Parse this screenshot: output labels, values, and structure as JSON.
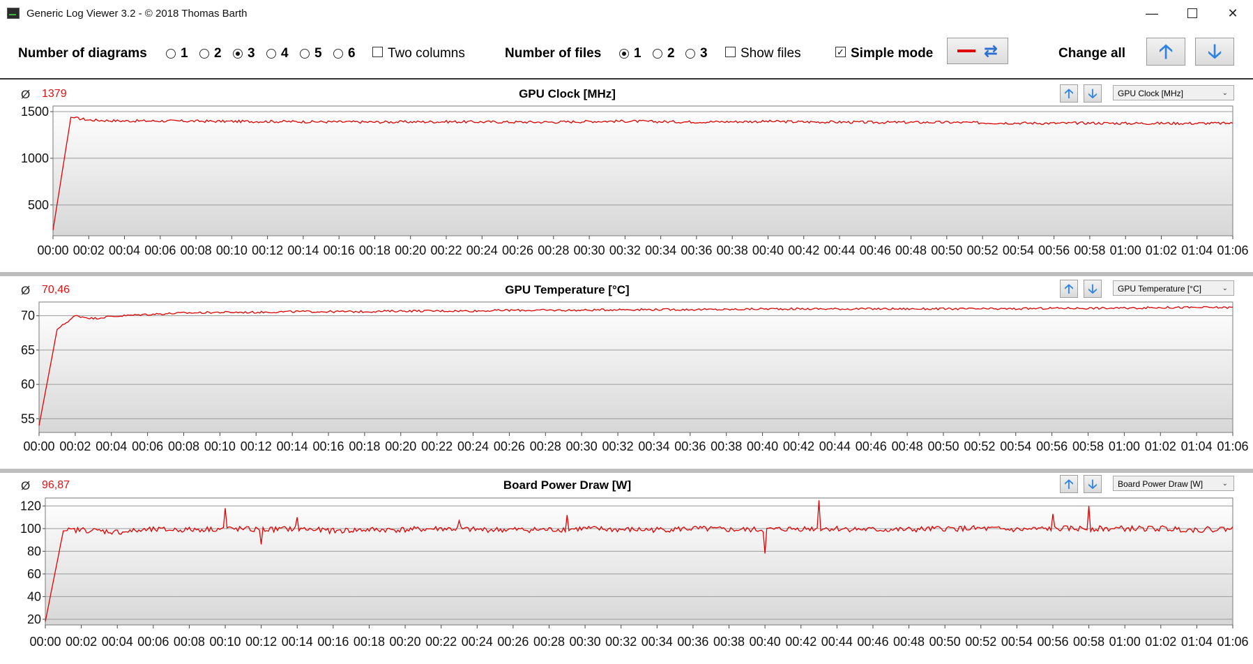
{
  "window": {
    "title": "Generic Log Viewer 3.2 - © 2018 Thomas Barth"
  },
  "toolbar": {
    "num_diagrams_label": "Number of diagrams",
    "diagram_options": [
      "1",
      "2",
      "3",
      "4",
      "5",
      "6"
    ],
    "diagrams_selected": "3",
    "two_columns_label": "Two columns",
    "two_columns_checked": false,
    "num_files_label": "Number of files",
    "file_options": [
      "1",
      "2",
      "3"
    ],
    "files_selected": "1",
    "show_files_label": "Show files",
    "show_files_checked": false,
    "simple_mode_label": "Simple mode",
    "simple_mode_checked": true,
    "change_all_label": "Change all",
    "line_color": "#e00000"
  },
  "panels": [
    {
      "avg_symbol": "Ø",
      "avg_value": "1379",
      "title": "GPU Clock [MHz]",
      "sensor_select": "GPU Clock [MHz]"
    },
    {
      "avg_symbol": "Ø",
      "avg_value": "70,46",
      "title": "GPU Temperature [°C]",
      "sensor_select": "GPU Temperature [°C]"
    },
    {
      "avg_symbol": "Ø",
      "avg_value": "96,87",
      "title": "Board Power Draw [W]",
      "sensor_select": "Board Power Draw [W]"
    }
  ],
  "chart_data": [
    {
      "type": "line",
      "title": "GPU Clock [MHz]",
      "ylim": [
        170,
        1560
      ],
      "y_ticks": [
        500,
        1000,
        1500
      ],
      "xlim": [
        "00:00",
        "01:06"
      ],
      "x_ticks": [
        "00:00",
        "00:02",
        "00:04",
        "00:06",
        "00:08",
        "00:10",
        "00:12",
        "00:14",
        "00:16",
        "00:18",
        "00:20",
        "00:22",
        "00:24",
        "00:26",
        "00:28",
        "00:30",
        "00:32",
        "00:34",
        "00:36",
        "00:38",
        "00:40",
        "00:42",
        "00:44",
        "00:46",
        "00:48",
        "00:50",
        "00:52",
        "00:54",
        "00:56",
        "00:58",
        "01:00",
        "01:02",
        "01:04",
        "01:06"
      ],
      "series": [
        {
          "x": [
            "00:00",
            "00:01",
            "00:02",
            "00:03",
            "00:04",
            "00:06",
            "00:08",
            "00:10",
            "00:12",
            "00:14",
            "00:16",
            "00:18",
            "00:20",
            "00:22",
            "00:24",
            "00:26",
            "00:28",
            "00:30",
            "00:32",
            "00:34",
            "00:36",
            "00:38",
            "00:40",
            "00:42",
            "00:44",
            "00:46",
            "00:48",
            "00:50",
            "00:52",
            "00:54",
            "00:56",
            "00:58",
            "01:00",
            "01:02",
            "01:04",
            "01:06"
          ],
          "values": [
            230,
            1440,
            1410,
            1405,
            1400,
            1400,
            1398,
            1395,
            1395,
            1392,
            1390,
            1388,
            1390,
            1392,
            1390,
            1388,
            1388,
            1395,
            1398,
            1392,
            1390,
            1392,
            1395,
            1390,
            1388,
            1385,
            1385,
            1385,
            1380,
            1378,
            1375,
            1378,
            1375,
            1375,
            1375,
            1375
          ]
        }
      ],
      "grid": true
    },
    {
      "type": "line",
      "title": "GPU Temperature [°C]",
      "ylim": [
        53,
        72
      ],
      "y_ticks": [
        55,
        60,
        65,
        70
      ],
      "xlim": [
        "00:00",
        "01:06"
      ],
      "x_ticks": [
        "00:00",
        "00:02",
        "00:04",
        "00:06",
        "00:08",
        "00:10",
        "00:12",
        "00:14",
        "00:16",
        "00:18",
        "00:20",
        "00:22",
        "00:24",
        "00:26",
        "00:28",
        "00:30",
        "00:32",
        "00:34",
        "00:36",
        "00:38",
        "00:40",
        "00:42",
        "00:44",
        "00:46",
        "00:48",
        "00:50",
        "00:52",
        "00:54",
        "00:56",
        "00:58",
        "01:00",
        "01:02",
        "01:04",
        "01:06"
      ],
      "series": [
        {
          "x": [
            "00:00",
            "00:01",
            "00:02",
            "00:03",
            "00:04",
            "00:06",
            "00:08",
            "00:10",
            "00:12",
            "00:14",
            "00:16",
            "00:18",
            "00:20",
            "00:22",
            "00:24",
            "00:26",
            "00:28",
            "00:30",
            "00:32",
            "00:34",
            "00:36",
            "00:38",
            "00:40",
            "00:42",
            "00:44",
            "00:46",
            "00:48",
            "00:50",
            "00:52",
            "00:54",
            "00:56",
            "00:58",
            "01:00",
            "01:02",
            "01:04",
            "01:06"
          ],
          "values": [
            54,
            68,
            70,
            69.6,
            69.9,
            70.2,
            70.4,
            70.5,
            70.5,
            70.6,
            70.6,
            70.6,
            70.7,
            70.7,
            70.7,
            70.8,
            70.8,
            70.8,
            70.9,
            70.9,
            70.9,
            70.9,
            71,
            71,
            71,
            71,
            71,
            71,
            71,
            71,
            71.1,
            71.1,
            71.1,
            71.2,
            71.2,
            71.2
          ]
        }
      ],
      "grid": true
    },
    {
      "type": "line",
      "title": "Board Power Draw [W]",
      "ylim": [
        15,
        127
      ],
      "y_ticks": [
        20,
        40,
        60,
        80,
        100,
        120
      ],
      "xlim": [
        "00:00",
        "01:06"
      ],
      "x_ticks": [
        "00:00",
        "00:02",
        "00:04",
        "00:06",
        "00:08",
        "00:10",
        "00:12",
        "00:14",
        "00:16",
        "00:18",
        "00:20",
        "00:22",
        "00:24",
        "00:26",
        "00:28",
        "00:30",
        "00:32",
        "00:34",
        "00:36",
        "00:38",
        "00:40",
        "00:42",
        "00:44",
        "00:46",
        "00:48",
        "00:50",
        "00:52",
        "00:54",
        "00:56",
        "00:58",
        "01:00",
        "01:02",
        "01:04",
        "01:06"
      ],
      "series": [
        {
          "x": [
            "00:00",
            "00:01",
            "00:02",
            "00:04",
            "00:06",
            "00:08",
            "00:10",
            "00:12",
            "00:14",
            "00:16",
            "00:18",
            "00:20",
            "00:22",
            "00:24",
            "00:26",
            "00:28",
            "00:30",
            "00:32",
            "00:34",
            "00:36",
            "00:38",
            "00:40",
            "00:42",
            "00:44",
            "00:46",
            "00:48",
            "00:50",
            "00:52",
            "00:54",
            "00:56",
            "00:58",
            "01:00",
            "01:02",
            "01:04",
            "01:06"
          ],
          "values": [
            18,
            98,
            99,
            97,
            99,
            99,
            100,
            99,
            100,
            98,
            99,
            99,
            100,
            99,
            99,
            99,
            100,
            99,
            99,
            100,
            99,
            99,
            100,
            100,
            99,
            99,
            100,
            100,
            99,
            100,
            100,
            100,
            100,
            99,
            100
          ]
        },
        {
          "x": [
            "00:10",
            "00:12",
            "00:14",
            "00:23",
            "00:29",
            "00:40",
            "00:43",
            "00:56",
            "00:58"
          ],
          "values": [
            118,
            86,
            110,
            107,
            112,
            78,
            125,
            113,
            120
          ],
          "kind": "spikes"
        }
      ],
      "grid": true
    }
  ]
}
